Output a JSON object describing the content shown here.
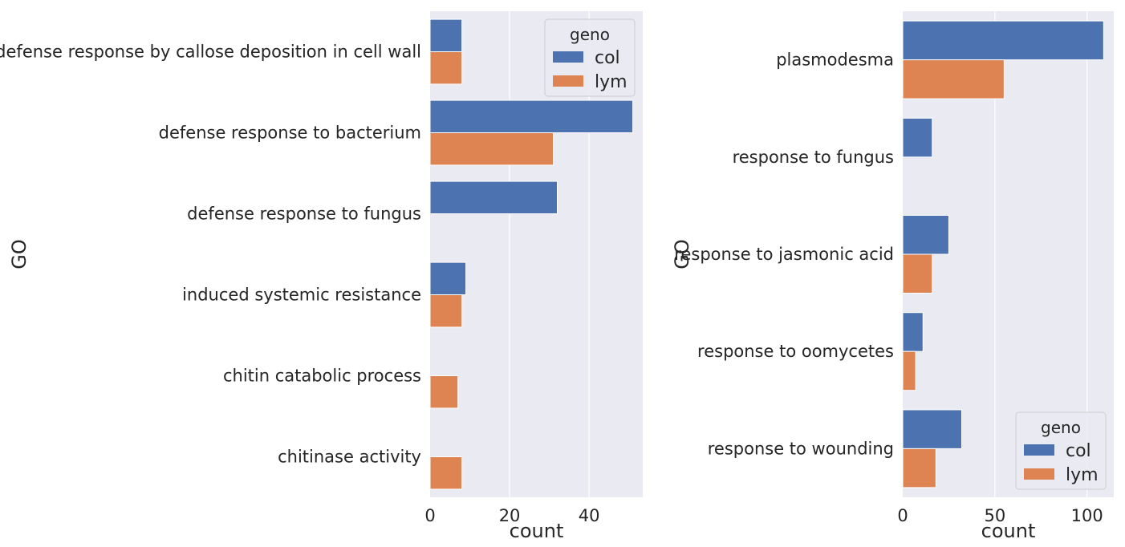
{
  "chart_data": [
    {
      "type": "bar",
      "orientation": "horizontal",
      "categories": [
        "defense response by callose deposition in cell wall",
        "defense response to bacterium",
        "defense response to fungus",
        "induced systemic resistance",
        "chitin catabolic process",
        "chitinase activity"
      ],
      "series": [
        {
          "name": "col",
          "color": "#4c72b0",
          "values": [
            8,
            51,
            32,
            9,
            null,
            null
          ]
        },
        {
          "name": "lym",
          "color": "#dd8452",
          "values": [
            8,
            31,
            null,
            8,
            7,
            8
          ]
        }
      ],
      "xlabel": "count",
      "ylabel": "GO",
      "xlim": [
        0,
        53.5
      ],
      "xticks": [
        0,
        20,
        40
      ],
      "grid": true,
      "legend": {
        "title": "geno",
        "position": "upper right"
      }
    },
    {
      "type": "bar",
      "orientation": "horizontal",
      "categories": [
        "plasmodesma",
        "response to fungus",
        "response to jasmonic acid",
        "response to oomycetes",
        "response to wounding"
      ],
      "series": [
        {
          "name": "col",
          "color": "#4c72b0",
          "values": [
            109,
            16,
            25,
            11,
            32
          ]
        },
        {
          "name": "lym",
          "color": "#dd8452",
          "values": [
            55,
            null,
            16,
            7,
            18
          ]
        }
      ],
      "xlabel": "count",
      "ylabel": "GO",
      "xlim": [
        0,
        114.5
      ],
      "xticks": [
        0,
        50,
        100
      ],
      "grid": true,
      "legend": {
        "title": "geno",
        "position": "lower right"
      }
    }
  ]
}
